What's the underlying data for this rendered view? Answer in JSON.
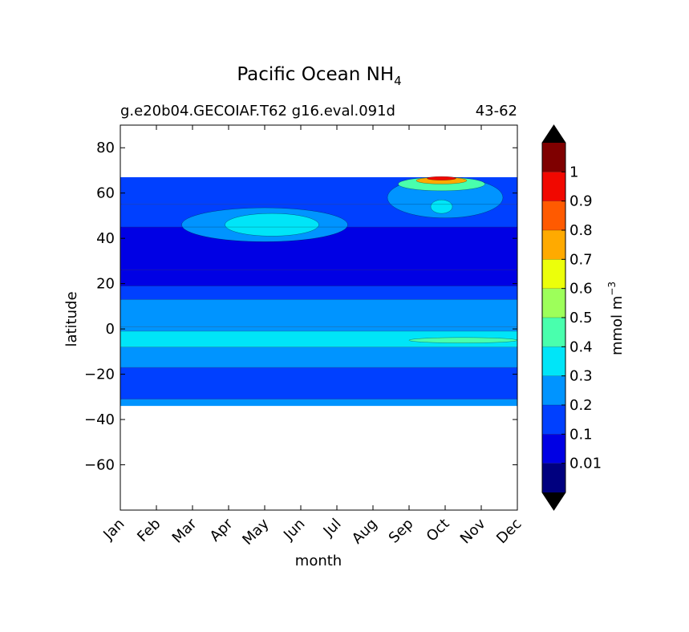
{
  "chart_data": {
    "type": "heatmap",
    "title": "Pacific Ocean NH",
    "title_subscript": "4",
    "subtitle_left": "g.e20b04.GECOIAF.T62 g16.eval.091d",
    "subtitle_right": "43-62",
    "xlabel": "month",
    "ylabel": "latitude",
    "x_categories": [
      "Jan",
      "Feb",
      "Mar",
      "Apr",
      "May",
      "Jun",
      "Jul",
      "Aug",
      "Sep",
      "Oct",
      "Nov",
      "Dec"
    ],
    "ylim": [
      -80,
      90
    ],
    "y_ticks": [
      80,
      60,
      40,
      20,
      0,
      -20,
      -40,
      -60
    ],
    "y_tick_labels": [
      "80",
      "60",
      "40",
      "20",
      "0",
      "−20",
      "−40",
      "−60"
    ],
    "data_extent_lat": [
      -34,
      67
    ],
    "colorbar": {
      "label": "mmol m",
      "label_superscript": "−3",
      "levels": [
        0.0,
        0.01,
        0.1,
        0.2,
        0.3,
        0.4,
        0.5,
        0.6,
        0.7,
        0.8,
        0.9,
        1.0,
        1.1
      ],
      "tick_values": [
        0.01,
        0.1,
        0.2,
        0.3,
        0.4,
        0.5,
        0.6,
        0.7,
        0.8,
        0.9,
        1.0
      ],
      "tick_labels": [
        "0.01",
        "0.1",
        "0.2",
        "0.3",
        "0.4",
        "0.5",
        "0.6",
        "0.7",
        "0.8",
        "0.9",
        "1"
      ],
      "colors": [
        "#00007f",
        "#0000e4",
        "#0040ff",
        "#0094ff",
        "#00e5f8",
        "#49ffad",
        "#9dff5a",
        "#ecff0a",
        "#ffaa00",
        "#ff5a00",
        "#f10800",
        "#7f0000"
      ],
      "under_color": "#000000",
      "over_color": "#000000"
    },
    "band_bins": [
      {
        "lat_range": [
          -34,
          -31
        ],
        "bin": 3
      },
      {
        "lat_range": [
          -31,
          -17
        ],
        "bin": 2
      },
      {
        "lat_range": [
          -17,
          -8
        ],
        "bin": 3
      },
      {
        "lat_range": [
          -8,
          -1
        ],
        "bin": 4
      },
      {
        "lat_range": [
          -1,
          1
        ],
        "bin": 3
      },
      {
        "lat_range": [
          1,
          13
        ],
        "bin": 3
      },
      {
        "lat_range": [
          13,
          19
        ],
        "bin": 2
      },
      {
        "lat_range": [
          19,
          26
        ],
        "bin": 1
      },
      {
        "lat_range": [
          26,
          45
        ],
        "bin": 1
      },
      {
        "lat_range": [
          45,
          55
        ],
        "bin": 2
      },
      {
        "lat_range": [
          55,
          67
        ],
        "bin": 2
      }
    ],
    "features": [
      {
        "name": "subpolar-patch-spring",
        "center": [
          4.0,
          46
        ],
        "extent": [
          2.3,
          7.5
        ],
        "bin": 3
      },
      {
        "name": "subpolar-core-spring",
        "center": [
          4.2,
          46
        ],
        "extent": [
          1.3,
          5.0
        ],
        "bin": 4
      },
      {
        "name": "subpolar-patch-autumn",
        "center": [
          9.0,
          58
        ],
        "extent": [
          1.6,
          9.0
        ],
        "bin": 3
      },
      {
        "name": "subpolar-core-autumn",
        "center": [
          8.9,
          54
        ],
        "extent": [
          0.3,
          3.0
        ],
        "bin": 4
      },
      {
        "name": "high-lat-bloom-1",
        "center": [
          8.9,
          64
        ],
        "extent": [
          1.2,
          3.0
        ],
        "bin": 5
      },
      {
        "name": "high-lat-bloom-2",
        "center": [
          8.9,
          65.5
        ],
        "extent": [
          0.7,
          1.5
        ],
        "bin": 8
      },
      {
        "name": "high-lat-bloom-3",
        "center": [
          8.9,
          66.5
        ],
        "extent": [
          0.4,
          0.8
        ],
        "bin": 10
      },
      {
        "name": "equatorial-max-oct",
        "center": [
          9.5,
          -5
        ],
        "extent": [
          1.5,
          1.2
        ],
        "bin": 5
      }
    ]
  }
}
